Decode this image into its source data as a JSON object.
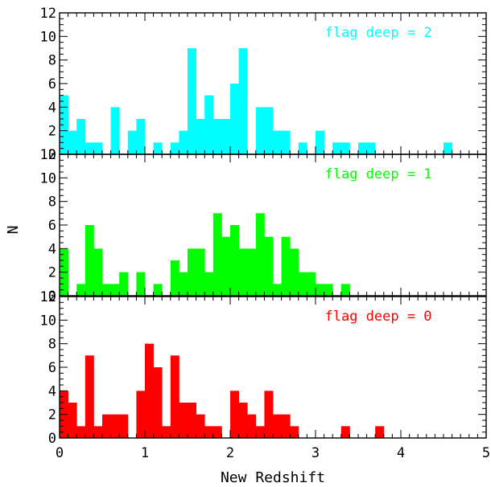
{
  "chart_data": {
    "type": "bar",
    "xlabel": "New Redshift",
    "ylabel": "N",
    "xlim": [
      0,
      5
    ],
    "ylim": [
      0,
      12
    ],
    "bin_width": 0.1,
    "x_ticks": [
      "0",
      "1",
      "2",
      "3",
      "4",
      "5"
    ],
    "y_ticks": [
      "0",
      "2",
      "4",
      "6",
      "8",
      "10",
      "12"
    ],
    "panels": [
      {
        "label": "flag deep = 2",
        "color": "#00ffff",
        "bins": [
          {
            "x": 0.0,
            "n": 5
          },
          {
            "x": 0.1,
            "n": 2
          },
          {
            "x": 0.2,
            "n": 3
          },
          {
            "x": 0.3,
            "n": 1
          },
          {
            "x": 0.4,
            "n": 1
          },
          {
            "x": 0.5,
            "n": 0
          },
          {
            "x": 0.6,
            "n": 4
          },
          {
            "x": 0.7,
            "n": 0
          },
          {
            "x": 0.8,
            "n": 2
          },
          {
            "x": 0.9,
            "n": 3
          },
          {
            "x": 1.0,
            "n": 0
          },
          {
            "x": 1.1,
            "n": 1
          },
          {
            "x": 1.2,
            "n": 0
          },
          {
            "x": 1.3,
            "n": 1
          },
          {
            "x": 1.4,
            "n": 2
          },
          {
            "x": 1.5,
            "n": 9
          },
          {
            "x": 1.6,
            "n": 3
          },
          {
            "x": 1.7,
            "n": 5
          },
          {
            "x": 1.8,
            "n": 3
          },
          {
            "x": 1.9,
            "n": 3
          },
          {
            "x": 2.0,
            "n": 6
          },
          {
            "x": 2.1,
            "n": 9
          },
          {
            "x": 2.2,
            "n": 0
          },
          {
            "x": 2.3,
            "n": 4
          },
          {
            "x": 2.4,
            "n": 4
          },
          {
            "x": 2.5,
            "n": 2
          },
          {
            "x": 2.6,
            "n": 2
          },
          {
            "x": 2.7,
            "n": 0
          },
          {
            "x": 2.8,
            "n": 1
          },
          {
            "x": 2.9,
            "n": 0
          },
          {
            "x": 3.0,
            "n": 2
          },
          {
            "x": 3.1,
            "n": 0
          },
          {
            "x": 3.2,
            "n": 1
          },
          {
            "x": 3.3,
            "n": 1
          },
          {
            "x": 3.4,
            "n": 0
          },
          {
            "x": 3.5,
            "n": 1
          },
          {
            "x": 3.6,
            "n": 1
          },
          {
            "x": 4.5,
            "n": 1
          }
        ]
      },
      {
        "label": "flag deep = 1",
        "color": "#00ff00",
        "bins": [
          {
            "x": 0.0,
            "n": 4
          },
          {
            "x": 0.1,
            "n": 0
          },
          {
            "x": 0.2,
            "n": 1
          },
          {
            "x": 0.3,
            "n": 6
          },
          {
            "x": 0.4,
            "n": 4
          },
          {
            "x": 0.5,
            "n": 1
          },
          {
            "x": 0.6,
            "n": 1
          },
          {
            "x": 0.7,
            "n": 2
          },
          {
            "x": 0.8,
            "n": 0
          },
          {
            "x": 0.9,
            "n": 2
          },
          {
            "x": 1.0,
            "n": 0
          },
          {
            "x": 1.1,
            "n": 1
          },
          {
            "x": 1.2,
            "n": 0
          },
          {
            "x": 1.3,
            "n": 3
          },
          {
            "x": 1.4,
            "n": 2
          },
          {
            "x": 1.5,
            "n": 4
          },
          {
            "x": 1.6,
            "n": 4
          },
          {
            "x": 1.7,
            "n": 2
          },
          {
            "x": 1.8,
            "n": 7
          },
          {
            "x": 1.9,
            "n": 5
          },
          {
            "x": 2.0,
            "n": 6
          },
          {
            "x": 2.1,
            "n": 4
          },
          {
            "x": 2.2,
            "n": 4
          },
          {
            "x": 2.3,
            "n": 7
          },
          {
            "x": 2.4,
            "n": 5
          },
          {
            "x": 2.5,
            "n": 1
          },
          {
            "x": 2.6,
            "n": 5
          },
          {
            "x": 2.7,
            "n": 4
          },
          {
            "x": 2.8,
            "n": 2
          },
          {
            "x": 2.9,
            "n": 2
          },
          {
            "x": 3.0,
            "n": 1
          },
          {
            "x": 3.1,
            "n": 1
          },
          {
            "x": 3.2,
            "n": 0
          },
          {
            "x": 3.3,
            "n": 1
          }
        ]
      },
      {
        "label": "flag deep = 0",
        "color": "#ff0000",
        "bins": [
          {
            "x": 0.0,
            "n": 4
          },
          {
            "x": 0.1,
            "n": 3
          },
          {
            "x": 0.2,
            "n": 1
          },
          {
            "x": 0.3,
            "n": 7
          },
          {
            "x": 0.4,
            "n": 1
          },
          {
            "x": 0.5,
            "n": 2
          },
          {
            "x": 0.6,
            "n": 2
          },
          {
            "x": 0.7,
            "n": 2
          },
          {
            "x": 0.8,
            "n": 0
          },
          {
            "x": 0.9,
            "n": 4
          },
          {
            "x": 1.0,
            "n": 8
          },
          {
            "x": 1.1,
            "n": 6
          },
          {
            "x": 1.2,
            "n": 1
          },
          {
            "x": 1.3,
            "n": 7
          },
          {
            "x": 1.4,
            "n": 3
          },
          {
            "x": 1.5,
            "n": 3
          },
          {
            "x": 1.6,
            "n": 2
          },
          {
            "x": 1.7,
            "n": 1
          },
          {
            "x": 1.8,
            "n": 1
          },
          {
            "x": 1.9,
            "n": 0
          },
          {
            "x": 2.0,
            "n": 4
          },
          {
            "x": 2.1,
            "n": 3
          },
          {
            "x": 2.2,
            "n": 2
          },
          {
            "x": 2.3,
            "n": 1
          },
          {
            "x": 2.4,
            "n": 4
          },
          {
            "x": 2.5,
            "n": 2
          },
          {
            "x": 2.6,
            "n": 2
          },
          {
            "x": 2.7,
            "n": 1
          },
          {
            "x": 2.8,
            "n": 0
          },
          {
            "x": 2.9,
            "n": 0
          },
          {
            "x": 3.0,
            "n": 0
          },
          {
            "x": 3.1,
            "n": 0
          },
          {
            "x": 3.2,
            "n": 0
          },
          {
            "x": 3.3,
            "n": 1
          },
          {
            "x": 3.4,
            "n": 0
          },
          {
            "x": 3.5,
            "n": 0
          },
          {
            "x": 3.6,
            "n": 0
          },
          {
            "x": 3.7,
            "n": 1
          }
        ]
      }
    ]
  }
}
